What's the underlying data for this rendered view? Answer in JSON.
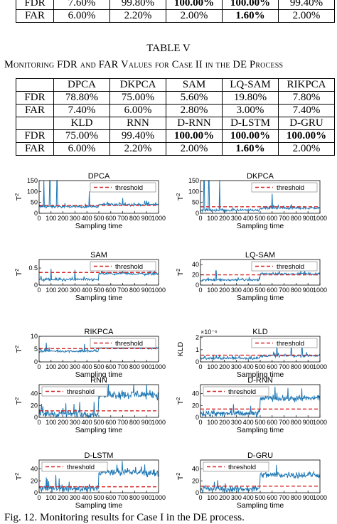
{
  "top_table": {
    "rows": [
      {
        "label": "FDR",
        "cells": [
          "7.60%",
          "99.80%",
          "100.00%",
          "100.00%",
          "99.40%"
        ],
        "bold": [
          false,
          false,
          true,
          true,
          false
        ]
      },
      {
        "label": "FAR",
        "cells": [
          "6.00%",
          "2.20%",
          "2.00%",
          "1.60%",
          "2.00%"
        ],
        "bold": [
          false,
          false,
          false,
          true,
          false
        ]
      }
    ]
  },
  "table_v": {
    "title": "TABLE V",
    "caption": "Monitoring FDR and FAR Values for Case II in the DE Process",
    "header1": [
      "DPCA",
      "DKPCA",
      "SAM",
      "LQ-SAM",
      "RIKPCA"
    ],
    "rows1": [
      {
        "label": "FDR",
        "cells": [
          "78.80%",
          "75.00%",
          "5.60%",
          "19.80%",
          "7.80%"
        ],
        "bold": [
          false,
          false,
          false,
          false,
          false
        ]
      },
      {
        "label": "FAR",
        "cells": [
          "7.40%",
          "6.00%",
          "2.80%",
          "3.00%",
          "7.40%"
        ],
        "bold": [
          false,
          false,
          false,
          false,
          false
        ]
      }
    ],
    "header2": [
      "KLD",
      "RNN",
      "D-RNN",
      "D-LSTM",
      "D-GRU"
    ],
    "header2_bold": [
      false,
      false,
      false,
      false,
      false
    ],
    "rows2": [
      {
        "label": "FDR",
        "cells": [
          "75.00%",
          "99.40%",
          "100.00%",
          "100.00%",
          "100.00%"
        ],
        "bold": [
          false,
          false,
          true,
          true,
          true
        ]
      },
      {
        "label": "FAR",
        "cells": [
          "6.00%",
          "2.20%",
          "2.00%",
          "1.60%",
          "2.00%"
        ],
        "bold": [
          false,
          false,
          false,
          true,
          false
        ]
      }
    ]
  },
  "figure": {
    "caption": "Fig. 12.   Monitoring results for Case I in the DE process.",
    "line_color": "#1f77b4",
    "threshold_color": "#d62728",
    "legend_label": "threshold",
    "xlabel": "Sampling time",
    "xticks": [
      "0",
      "100",
      "200",
      "300",
      "400",
      "500",
      "600",
      "700",
      "800",
      "900",
      "1000"
    ],
    "panels": [
      {
        "title": "DPCA",
        "ylabel": "T2",
        "yticks": [
          0,
          50,
          100,
          150
        ],
        "ymax": 150,
        "threshold": 36,
        "before": 30,
        "after": 40,
        "noise": 8,
        "spikes": [
          [
            40,
            150
          ],
          [
            90,
            150
          ],
          [
            150,
            150
          ],
          [
            420,
            100
          ],
          [
            700,
            70
          ]
        ],
        "legend_pos": "top-right",
        "exponent": ""
      },
      {
        "title": "DKPCA",
        "ylabel": "T2",
        "yticks": [
          0,
          50,
          100,
          150
        ],
        "ymax": 150,
        "threshold": 30,
        "before": 14,
        "after": 24,
        "noise": 8,
        "spikes": [
          [
            30,
            150
          ],
          [
            70,
            150
          ],
          [
            160,
            150
          ],
          [
            600,
            90
          ]
        ],
        "legend_pos": "top-right",
        "exponent": ""
      },
      {
        "title": "SAM",
        "ylabel": "T2",
        "yticks": [
          0,
          0.5
        ],
        "ymax": 0.75,
        "threshold": 0.37,
        "before": 0.16,
        "after": 0.33,
        "noise": 0.06,
        "spikes": [
          [
            100,
            0.48
          ],
          [
            300,
            0.45
          ]
        ],
        "legend_pos": "top-right",
        "exponent": ""
      },
      {
        "title": "LQ-SAM",
        "ylabel": "T2",
        "yticks": [
          0,
          20,
          40
        ],
        "ymax": 50,
        "threshold": 20,
        "before": 10,
        "after": 22,
        "noise": 3,
        "spikes": [
          [
            130,
            28
          ]
        ],
        "legend_pos": "top-right",
        "exponent": ""
      },
      {
        "title": "RIKPCA",
        "ylabel": "T2",
        "yticks": [
          0,
          5,
          10
        ],
        "ymax": 10,
        "threshold": 5.2,
        "before": 4.2,
        "after": 5.4,
        "noise": 0.6,
        "spikes": [
          [
            60,
            7.5
          ],
          [
            380,
            7
          ]
        ],
        "legend_pos": "top-right",
        "exponent": ""
      },
      {
        "title": "KLD",
        "ylabel": "KLD",
        "yticks": [
          0,
          1,
          2
        ],
        "ymax": 2.1,
        "threshold": 0.55,
        "before": 0.3,
        "after": 0.5,
        "noise": 0.15,
        "spikes": [
          [
            640,
            1.45
          ],
          [
            760,
            1.6
          ],
          [
            850,
            1.2
          ]
        ],
        "legend_pos": "top-right",
        "exponent": "×10⁻⁶"
      },
      {
        "title": "RNN",
        "ylabel": "T2",
        "yticks": [
          0,
          20,
          40
        ],
        "ymax": 55,
        "threshold": 11,
        "before": 6,
        "after": 38,
        "noise": 10,
        "spikes": [],
        "legend_pos": "top-left",
        "exponent": ""
      },
      {
        "title": "D-RNN",
        "ylabel": "T2",
        "yticks": [
          0,
          20,
          40
        ],
        "ymax": 55,
        "threshold": 14,
        "before": 6,
        "after": 32,
        "noise": 8,
        "spikes": [],
        "legend_pos": "top-left",
        "exponent": ""
      },
      {
        "title": "D-LSTM",
        "ylabel": "T2",
        "yticks": [
          0,
          20,
          40
        ],
        "ymax": 55,
        "threshold": 10,
        "before": 7,
        "after": 34,
        "noise": 9,
        "spikes": [
          [
            140,
            30
          ]
        ],
        "legend_pos": "top-left",
        "exponent": ""
      },
      {
        "title": "D-GRU",
        "ylabel": "T2",
        "yticks": [
          0,
          20,
          40
        ],
        "ymax": 55,
        "threshold": 11,
        "before": 6,
        "after": 30,
        "noise": 8,
        "spikes": [],
        "legend_pos": "top-left",
        "exponent": ""
      }
    ]
  }
}
